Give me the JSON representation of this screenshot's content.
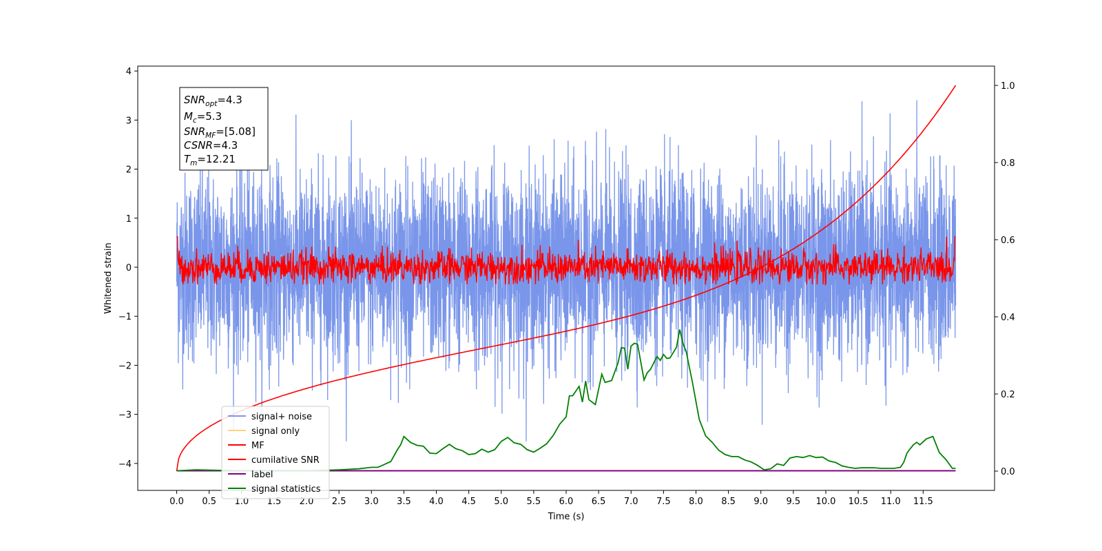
{
  "chart_data": {
    "type": "line",
    "xlabel": "Time (s)",
    "ylabel": "Whitened strain",
    "xlim": [
      -0.6,
      12.6
    ],
    "ylim": [
      -4.55,
      4.1
    ],
    "y2lim": [
      -0.05,
      1.05
    ],
    "x_ticks": [
      "0.0",
      "0.5",
      "1.0",
      "1.5",
      "2.0",
      "2.5",
      "3.0",
      "3.5",
      "4.0",
      "4.5",
      "5.0",
      "5.5",
      "6.0",
      "6.5",
      "7.0",
      "7.5",
      "8.0",
      "8.5",
      "9.0",
      "9.5",
      "10.0",
      "10.5",
      "11.0",
      "11.5"
    ],
    "y_ticks": [
      "4",
      "3",
      "2",
      "1",
      "0",
      "−1",
      "−2",
      "−3",
      "−4"
    ],
    "y2_ticks": [
      "1.0",
      "0.8",
      "0.6",
      "0.4",
      "0.2",
      "0.0"
    ],
    "grid": false,
    "legend_position": "lower-left",
    "annotation": {
      "lines": [
        {
          "main": "SNR",
          "sub": "opt",
          "value": "=4.3"
        },
        {
          "main": "M",
          "sub": "c",
          "value": "=5.3"
        },
        {
          "main": "SNR",
          "sub": "MF",
          "value": "=[5.08]"
        },
        {
          "main": "CSNR",
          "sub": "",
          "value": "=4.3"
        },
        {
          "main": "T",
          "sub": "m",
          "value": "=12.21"
        }
      ]
    },
    "series": [
      {
        "name": "signal+ noise",
        "color": "#4169e1",
        "axis": "left",
        "description_noise_std": 0.95,
        "x_range": [
          0.0,
          12.0
        ]
      },
      {
        "name": "signal only",
        "color": "#ffa500",
        "axis": "left",
        "x_range": [
          0.0,
          12.0
        ]
      },
      {
        "name": "MF",
        "color": "#ff0000",
        "axis": "left",
        "x_range": [
          0.0,
          12.0
        ]
      },
      {
        "name": "cumilative SNR",
        "color": "#ff0000",
        "axis": "right",
        "x_range": [
          0.0,
          12.0
        ],
        "y_end": 1.0
      },
      {
        "name": "label",
        "color": "#800080",
        "axis": "left",
        "x_range": [
          0.0,
          12.0
        ],
        "y": -4.15
      },
      {
        "name": "signal statistics",
        "color": "#008000",
        "axis": "left",
        "points": [
          [
            0.0,
            -4.15
          ],
          [
            0.3,
            -4.13
          ],
          [
            0.6,
            -4.14
          ],
          [
            1.0,
            -4.15
          ],
          [
            1.5,
            -4.15
          ],
          [
            2.0,
            -4.15
          ],
          [
            2.5,
            -4.13
          ],
          [
            2.8,
            -4.11
          ],
          [
            3.0,
            -4.08
          ],
          [
            3.1,
            -4.08
          ],
          [
            3.2,
            -4.02
          ],
          [
            3.3,
            -3.96
          ],
          [
            3.4,
            -3.72
          ],
          [
            3.45,
            -3.62
          ],
          [
            3.5,
            -3.45
          ],
          [
            3.6,
            -3.57
          ],
          [
            3.7,
            -3.63
          ],
          [
            3.8,
            -3.65
          ],
          [
            3.9,
            -3.79
          ],
          [
            4.0,
            -3.8
          ],
          [
            4.1,
            -3.7
          ],
          [
            4.2,
            -3.61
          ],
          [
            4.3,
            -3.7
          ],
          [
            4.4,
            -3.74
          ],
          [
            4.5,
            -3.82
          ],
          [
            4.6,
            -3.8
          ],
          [
            4.7,
            -3.71
          ],
          [
            4.8,
            -3.77
          ],
          [
            4.9,
            -3.72
          ],
          [
            5.0,
            -3.55
          ],
          [
            5.1,
            -3.47
          ],
          [
            5.2,
            -3.58
          ],
          [
            5.3,
            -3.61
          ],
          [
            5.4,
            -3.72
          ],
          [
            5.5,
            -3.77
          ],
          [
            5.6,
            -3.69
          ],
          [
            5.7,
            -3.6
          ],
          [
            5.8,
            -3.43
          ],
          [
            5.9,
            -3.2
          ],
          [
            6.0,
            -3.05
          ],
          [
            6.05,
            -2.62
          ],
          [
            6.1,
            -2.62
          ],
          [
            6.2,
            -2.43
          ],
          [
            6.25,
            -2.75
          ],
          [
            6.3,
            -2.32
          ],
          [
            6.35,
            -2.7
          ],
          [
            6.45,
            -2.8
          ],
          [
            6.55,
            -2.18
          ],
          [
            6.6,
            -2.35
          ],
          [
            6.7,
            -2.31
          ],
          [
            6.8,
            -1.95
          ],
          [
            6.85,
            -1.64
          ],
          [
            6.9,
            -1.65
          ],
          [
            6.95,
            -2.08
          ],
          [
            7.0,
            -1.61
          ],
          [
            7.05,
            -1.55
          ],
          [
            7.1,
            -1.57
          ],
          [
            7.2,
            -2.3
          ],
          [
            7.25,
            -2.15
          ],
          [
            7.3,
            -2.08
          ],
          [
            7.4,
            -1.82
          ],
          [
            7.45,
            -1.9
          ],
          [
            7.5,
            -1.78
          ],
          [
            7.55,
            -1.86
          ],
          [
            7.6,
            -1.85
          ],
          [
            7.7,
            -1.63
          ],
          [
            7.75,
            -1.27
          ],
          [
            7.8,
            -1.55
          ],
          [
            7.85,
            -1.72
          ],
          [
            7.95,
            -2.38
          ],
          [
            8.05,
            -3.1
          ],
          [
            8.15,
            -3.44
          ],
          [
            8.25,
            -3.57
          ],
          [
            8.35,
            -3.73
          ],
          [
            8.45,
            -3.82
          ],
          [
            8.55,
            -3.86
          ],
          [
            8.65,
            -3.86
          ],
          [
            8.75,
            -3.93
          ],
          [
            8.85,
            -3.97
          ],
          [
            8.95,
            -4.04
          ],
          [
            9.05,
            -4.13
          ],
          [
            9.15,
            -4.11
          ],
          [
            9.25,
            -4.01
          ],
          [
            9.35,
            -4.04
          ],
          [
            9.45,
            -3.89
          ],
          [
            9.55,
            -3.86
          ],
          [
            9.65,
            -3.88
          ],
          [
            9.75,
            -3.84
          ],
          [
            9.85,
            -3.88
          ],
          [
            9.95,
            -3.87
          ],
          [
            10.05,
            -3.95
          ],
          [
            10.15,
            -3.98
          ],
          [
            10.25,
            -4.05
          ],
          [
            10.35,
            -4.08
          ],
          [
            10.45,
            -4.1
          ],
          [
            10.55,
            -4.09
          ],
          [
            10.65,
            -4.09
          ],
          [
            10.75,
            -4.09
          ],
          [
            10.85,
            -4.1
          ],
          [
            10.95,
            -4.1
          ],
          [
            11.05,
            -4.1
          ],
          [
            11.15,
            -4.08
          ],
          [
            11.2,
            -3.98
          ],
          [
            11.25,
            -3.79
          ],
          [
            11.3,
            -3.7
          ],
          [
            11.35,
            -3.62
          ],
          [
            11.4,
            -3.57
          ],
          [
            11.45,
            -3.62
          ],
          [
            11.55,
            -3.5
          ],
          [
            11.65,
            -3.45
          ],
          [
            11.75,
            -3.78
          ],
          [
            11.85,
            -3.92
          ],
          [
            11.95,
            -4.1
          ],
          [
            12.0,
            -4.1
          ]
        ]
      }
    ]
  }
}
